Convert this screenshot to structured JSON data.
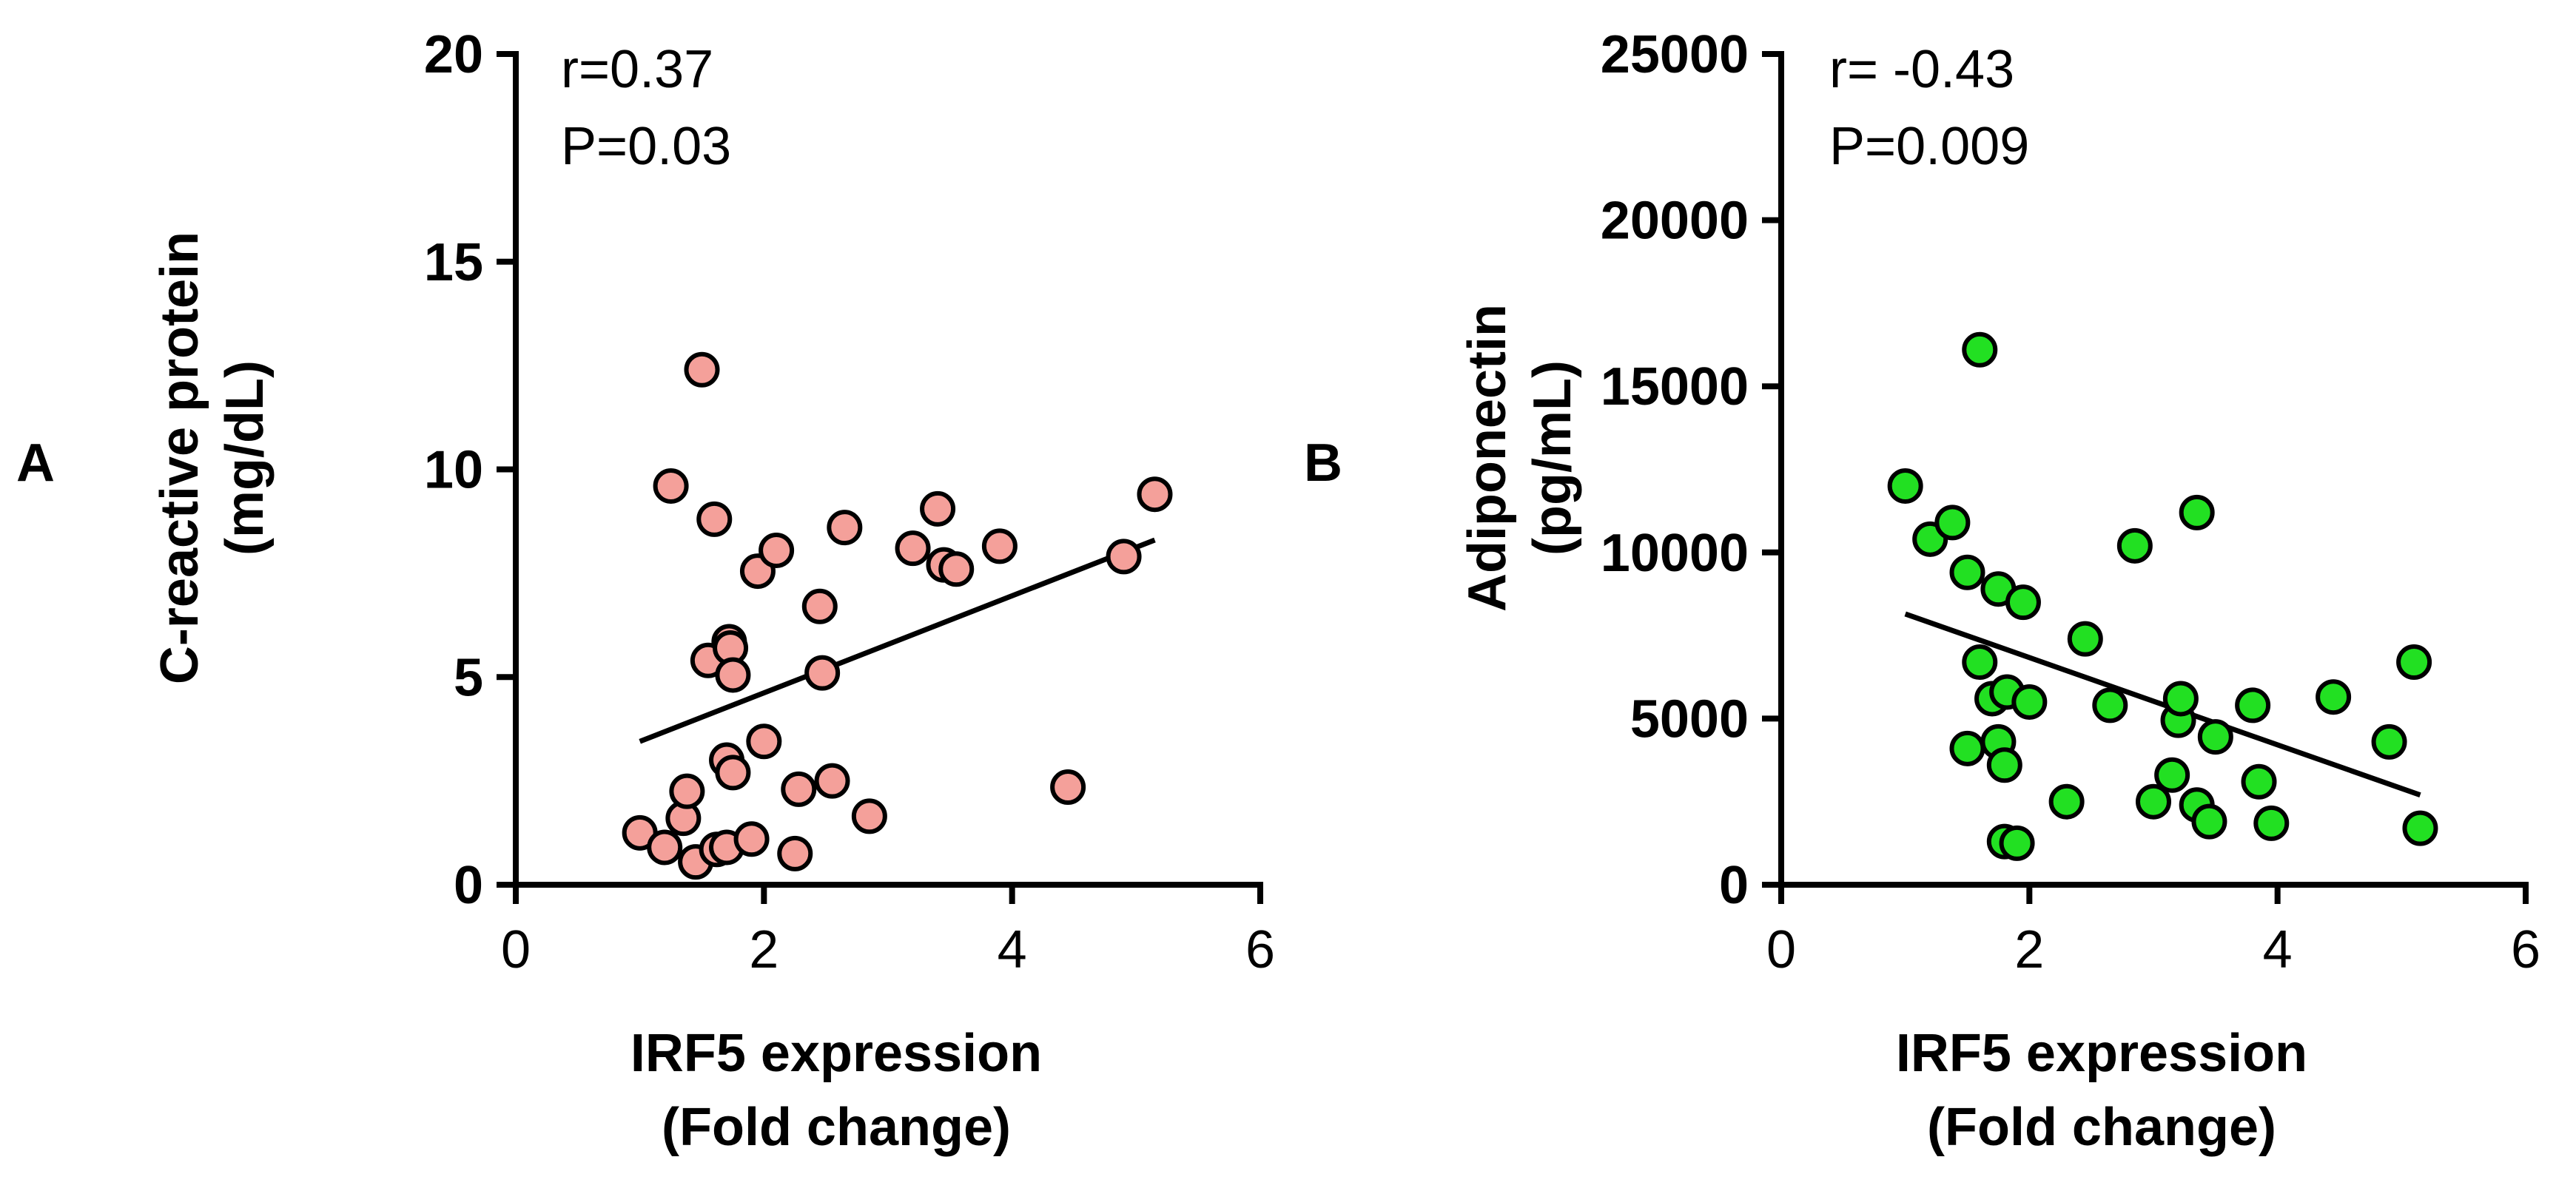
{
  "chart_data": [
    {
      "panel_label": "A",
      "type": "scatter",
      "title": "",
      "xlabel": [
        "IRF5 expression",
        "(Fold change)"
      ],
      "ylabel": [
        "C-reactive protein",
        "(mg/dL)"
      ],
      "xlim": [
        0,
        6
      ],
      "ylim": [
        0,
        20
      ],
      "xticks": [
        0,
        2,
        4,
        6
      ],
      "yticks": [
        0,
        5,
        10,
        15,
        20
      ],
      "xtick_labels": [
        "0",
        "2",
        "4",
        "6"
      ],
      "ytick_labels": [
        "0",
        "5",
        "10",
        "15",
        "20"
      ],
      "annotations": [
        "r=0.37",
        "P=0.03"
      ],
      "marker_color": "#f4a09a",
      "marker_edge": "#000000",
      "grid": false,
      "points": [
        [
          1.0,
          1.25
        ],
        [
          1.2,
          0.9
        ],
        [
          1.25,
          9.6
        ],
        [
          1.35,
          1.6
        ],
        [
          1.38,
          2.25
        ],
        [
          1.45,
          0.55
        ],
        [
          1.5,
          12.4
        ],
        [
          1.55,
          5.4
        ],
        [
          1.6,
          8.8
        ],
        [
          1.62,
          0.85
        ],
        [
          1.7,
          0.9
        ],
        [
          1.7,
          3.0
        ],
        [
          1.72,
          5.85
        ],
        [
          1.73,
          5.7
        ],
        [
          1.75,
          2.7
        ],
        [
          1.75,
          5.05
        ],
        [
          1.9,
          1.1
        ],
        [
          1.95,
          7.55
        ],
        [
          2.0,
          3.45
        ],
        [
          2.1,
          8.05
        ],
        [
          2.25,
          0.75
        ],
        [
          2.28,
          2.3
        ],
        [
          2.45,
          6.7
        ],
        [
          2.47,
          5.1
        ],
        [
          2.55,
          2.5
        ],
        [
          2.65,
          8.6
        ],
        [
          2.85,
          1.65
        ],
        [
          3.2,
          8.1
        ],
        [
          3.4,
          9.05
        ],
        [
          3.45,
          7.7
        ],
        [
          3.55,
          7.6
        ],
        [
          3.9,
          8.15
        ],
        [
          4.45,
          2.35
        ],
        [
          4.9,
          7.9
        ],
        [
          5.15,
          9.4
        ]
      ],
      "fit_line": {
        "x": [
          1.0,
          5.15
        ],
        "y": [
          3.45,
          8.3
        ]
      }
    },
    {
      "panel_label": "B",
      "type": "scatter",
      "title": "",
      "xlabel": [
        "IRF5 expression",
        "(Fold change)"
      ],
      "ylabel": [
        "Adiponectin",
        "(pg/mL)"
      ],
      "xlim": [
        0,
        6
      ],
      "ylim": [
        0,
        25000
      ],
      "xticks": [
        0,
        2,
        4,
        6
      ],
      "yticks": [
        0,
        5000,
        10000,
        15000,
        20000,
        25000
      ],
      "xtick_labels": [
        "0",
        "2",
        "4",
        "6"
      ],
      "ytick_labels": [
        "0",
        "5000",
        "10000",
        "15000",
        "20000",
        "25000"
      ],
      "annotations": [
        "r= -0.43",
        "P=0.009"
      ],
      "marker_color": "#22e022",
      "marker_edge": "#000000",
      "grid": false,
      "points": [
        [
          1.0,
          12000
        ],
        [
          1.2,
          10400
        ],
        [
          1.38,
          10900
        ],
        [
          1.5,
          9400
        ],
        [
          1.6,
          16100
        ],
        [
          1.5,
          4100
        ],
        [
          1.6,
          6700
        ],
        [
          1.7,
          5600
        ],
        [
          1.75,
          8900
        ],
        [
          1.75,
          4300
        ],
        [
          1.8,
          3600
        ],
        [
          1.82,
          5800
        ],
        [
          1.8,
          1300
        ],
        [
          1.9,
          1250
        ],
        [
          1.95,
          8500
        ],
        [
          2.0,
          5500
        ],
        [
          2.3,
          2500
        ],
        [
          2.45,
          7400
        ],
        [
          2.65,
          5400
        ],
        [
          2.85,
          10200
        ],
        [
          3.0,
          2500
        ],
        [
          3.15,
          3300
        ],
        [
          3.2,
          4950
        ],
        [
          3.22,
          5600
        ],
        [
          3.35,
          2400
        ],
        [
          3.35,
          11200
        ],
        [
          3.45,
          1900
        ],
        [
          3.5,
          4450
        ],
        [
          3.8,
          5400
        ],
        [
          3.85,
          3100
        ],
        [
          3.95,
          1850
        ],
        [
          4.45,
          5650
        ],
        [
          4.9,
          4300
        ],
        [
          5.1,
          6700
        ],
        [
          5.15,
          1700
        ]
      ],
      "fit_line": {
        "x": [
          1.0,
          5.15
        ],
        "y": [
          8150,
          2700
        ]
      }
    }
  ]
}
